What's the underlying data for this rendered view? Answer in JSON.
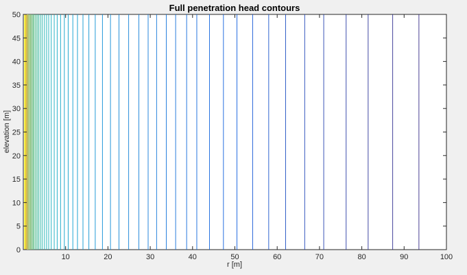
{
  "chart_data": {
    "type": "contour",
    "title": "Full penetration head contours",
    "xlabel": "r [m]",
    "ylabel": "elevation [m]",
    "xlim": [
      0,
      100
    ],
    "ylim": [
      0,
      50
    ],
    "xticks": [
      10,
      20,
      30,
      40,
      50,
      60,
      70,
      80,
      90,
      100
    ],
    "xtick_labels": [
      "10",
      "20",
      "30",
      "40",
      "50",
      "60",
      "70",
      "80",
      "90",
      "100"
    ],
    "yticks": [
      0,
      5,
      10,
      15,
      20,
      25,
      30,
      35,
      40,
      45,
      50
    ],
    "ytick_labels": [
      "0",
      "5",
      "10",
      "15",
      "20",
      "25",
      "30",
      "35",
      "40",
      "45",
      "50"
    ],
    "colormap": "parula",
    "grid": false,
    "contour_r_values": [
      0.3,
      0.4,
      0.5,
      0.6,
      0.7,
      0.8,
      0.9,
      1.0,
      1.1,
      1.2,
      1.4,
      1.5,
      1.7,
      1.9,
      2.1,
      2.3,
      2.5,
      2.8,
      3.1,
      3.4,
      3.7,
      4.1,
      4.5,
      5.0,
      5.5,
      6.0,
      6.6,
      7.3,
      8.0,
      8.8,
      9.7,
      10.6,
      11.7,
      12.8,
      14.1,
      15.5,
      17.0,
      18.7,
      20.6,
      22.6,
      24.9,
      27.3,
      29.5,
      31.5,
      33.8,
      36.0,
      38.6,
      41.0,
      44.0,
      47.3,
      50.5,
      54.2,
      58.0,
      62.0,
      66.5,
      71.0,
      76.3,
      81.5,
      87.3,
      93.5
    ]
  }
}
